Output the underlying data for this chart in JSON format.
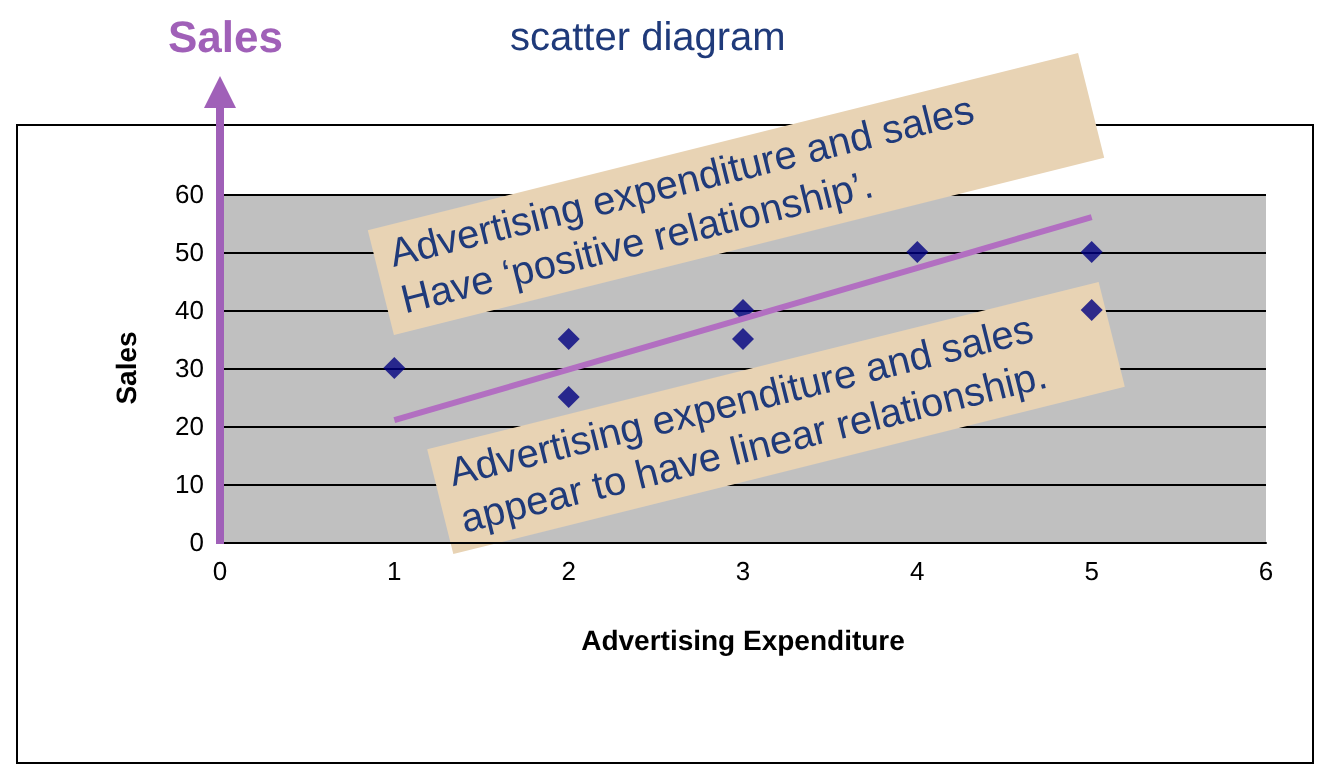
{
  "chart_data": {
    "type": "scatter",
    "title": "scatter diagram",
    "xlabel": "Advertising Expenditure",
    "ylabel": "Sales",
    "annotations": [
      "Sales",
      "Advertising expenditure and sales Have ‘positive relationship’.",
      "Advertising expenditure and sales appear to have linear relationship."
    ],
    "series": [
      {
        "marker": "diamond",
        "color": "#000080",
        "x": [
          1,
          2,
          2,
          3,
          3,
          4,
          5,
          5
        ],
        "values": [
          30,
          35,
          25,
          40,
          35,
          50,
          50,
          40
        ]
      },
      {
        "type": "line",
        "color": "#b26fc1",
        "x": [
          1,
          5
        ],
        "values": [
          21,
          56
        ]
      }
    ],
    "xlim": [
      0,
      6
    ],
    "xticks": [
      0,
      1,
      2,
      3,
      4,
      5,
      6
    ],
    "ylim": [
      0,
      60
    ],
    "yticks": [
      0,
      10,
      20,
      30,
      40,
      50,
      60
    ],
    "grid": "y"
  }
}
